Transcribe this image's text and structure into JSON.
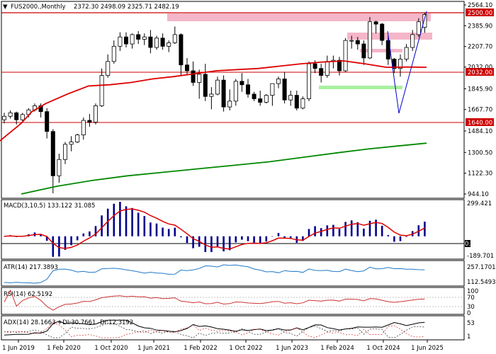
{
  "header": {
    "symbol": "FUS2000.,Monthly",
    "ohlc": "2372.30 2498.09 2325.71 2482.19"
  },
  "chart_data": {
    "type": "candlestick",
    "x_labels": [
      "1 Jun 2019",
      "1 Feb 2020",
      "1 Oct 2020",
      "1 Jun 2021",
      "1 Feb 2022",
      "1 Oct 2022",
      "1 Jun 2023",
      "1 Feb 2024",
      "1 Oct 2024",
      "1 Jun 2025"
    ],
    "price_ticks": [
      "2564.10",
      "2385.90",
      "2207.70",
      "2032.00",
      "1845.90",
      "1667.70",
      "1484.10",
      "1300.50",
      "1122.30",
      "944.10"
    ],
    "price_range": [
      944.1,
      2564.1
    ],
    "level_labels": [
      "2500.00",
      "2032.00",
      "1640.00"
    ],
    "candles": [
      [
        1580,
        1640,
        1550,
        1610
      ],
      [
        1610,
        1660,
        1590,
        1640
      ],
      [
        1640,
        1650,
        1540,
        1580
      ],
      [
        1580,
        1640,
        1570,
        1625
      ],
      [
        1625,
        1680,
        1600,
        1665
      ],
      [
        1665,
        1720,
        1650,
        1700
      ],
      [
        1700,
        1720,
        1600,
        1650
      ],
      [
        1650,
        1680,
        1420,
        1480
      ],
      [
        1480,
        1500,
        950,
        1100
      ],
      [
        1100,
        1290,
        1040,
        1240
      ],
      [
        1240,
        1390,
        1200,
        1370
      ],
      [
        1370,
        1440,
        1310,
        1390
      ],
      [
        1390,
        1460,
        1380,
        1450
      ],
      [
        1450,
        1600,
        1410,
        1575
      ],
      [
        1575,
        1630,
        1520,
        1560
      ],
      [
        1560,
        1720,
        1540,
        1700
      ],
      [
        1700,
        2020,
        1690,
        1960
      ],
      [
        1960,
        2140,
        1940,
        2080
      ],
      [
        2080,
        2260,
        2060,
        2210
      ],
      [
        2210,
        2330,
        2170,
        2290
      ],
      [
        2290,
        2330,
        2200,
        2230
      ],
      [
        2230,
        2320,
        2190,
        2310
      ],
      [
        2310,
        2340,
        2230,
        2270
      ],
      [
        2270,
        2320,
        2220,
        2290
      ],
      [
        2290,
        2350,
        2150,
        2200
      ],
      [
        2200,
        2300,
        2180,
        2280
      ],
      [
        2280,
        2320,
        2180,
        2210
      ],
      [
        2210,
        2260,
        2160,
        2240
      ],
      [
        2240,
        2380,
        2230,
        2310
      ],
      [
        2310,
        2320,
        1960,
        2050
      ],
      [
        2050,
        2110,
        1960,
        2000
      ],
      [
        2000,
        2080,
        1870,
        1900
      ],
      [
        1900,
        2010,
        1760,
        1970
      ],
      [
        1970,
        2060,
        1740,
        1780
      ],
      [
        1780,
        1860,
        1670,
        1800
      ],
      [
        1800,
        1950,
        1790,
        1920
      ],
      [
        1920,
        1960,
        1650,
        1690
      ],
      [
        1690,
        1840,
        1660,
        1740
      ],
      [
        1740,
        1930,
        1700,
        1910
      ],
      [
        1910,
        1980,
        1820,
        1880
      ],
      [
        1880,
        1930,
        1770,
        1800
      ],
      [
        1800,
        1820,
        1740,
        1760
      ],
      [
        1760,
        1830,
        1700,
        1730
      ],
      [
        1730,
        1800,
        1720,
        1790
      ],
      [
        1790,
        1880,
        1700,
        1890
      ],
      [
        1890,
        1950,
        1850,
        1930
      ],
      [
        1930,
        1990,
        1720,
        1750
      ],
      [
        1750,
        1830,
        1700,
        1790
      ],
      [
        1790,
        1830,
        1660,
        1680
      ],
      [
        1680,
        1780,
        1670,
        1760
      ],
      [
        1760,
        2080,
        1740,
        2060
      ],
      [
        2060,
        2090,
        1980,
        2020
      ],
      [
        2020,
        2060,
        1900,
        1960
      ],
      [
        1960,
        2130,
        1940,
        2080
      ],
      [
        2080,
        2130,
        2020,
        2090
      ],
      [
        2090,
        2120,
        1960,
        2000
      ],
      [
        2000,
        2280,
        1990,
        2260
      ],
      [
        2260,
        2300,
        2190,
        2260
      ],
      [
        2260,
        2290,
        2180,
        2230
      ],
      [
        2230,
        2260,
        2050,
        2110
      ],
      [
        2110,
        2460,
        2100,
        2420
      ],
      [
        2420,
        2430,
        2320,
        2400
      ],
      [
        2400,
        2410,
        2220,
        2260
      ],
      [
        2260,
        2300,
        2050,
        2100
      ],
      [
        2100,
        2110,
        1980,
        2020
      ],
      [
        2020,
        2140,
        1950,
        2100
      ],
      [
        2100,
        2230,
        2080,
        2200
      ],
      [
        2200,
        2350,
        2170,
        2310
      ],
      [
        2310,
        2450,
        2290,
        2420
      ],
      [
        2372.3,
        2498.09,
        2325.71,
        2482.19
      ]
    ],
    "ma_red": [
      [
        0,
        1400
      ],
      [
        10,
        1450
      ],
      [
        20,
        1500
      ],
      [
        30,
        1550
      ],
      [
        45,
        1650
      ],
      [
        65,
        1720
      ],
      [
        95,
        1800
      ],
      [
        125,
        1870
      ],
      [
        155,
        1880
      ],
      [
        185,
        1900
      ],
      [
        215,
        1930
      ],
      [
        245,
        1950
      ],
      [
        275,
        1975
      ],
      [
        305,
        2000
      ],
      [
        335,
        2010
      ],
      [
        365,
        2020
      ],
      [
        395,
        2040
      ],
      [
        425,
        2060
      ],
      [
        455,
        2075
      ],
      [
        485,
        2085
      ],
      [
        515,
        2060
      ],
      [
        545,
        2030
      ],
      [
        575,
        2032
      ],
      [
        602,
        2030
      ]
    ],
    "ma_green": [
      [
        30,
        944
      ],
      [
        80,
        1010
      ],
      [
        130,
        1060
      ],
      [
        180,
        1100
      ],
      [
        230,
        1130
      ],
      [
        280,
        1160
      ],
      [
        330,
        1190
      ],
      [
        380,
        1220
      ],
      [
        430,
        1260
      ],
      [
        480,
        1300
      ],
      [
        520,
        1330
      ],
      [
        560,
        1355
      ],
      [
        602,
        1380
      ]
    ],
    "macd": {
      "title": "MACD(3,10,5) 133.122 31.085",
      "ticks": [
        "299.421",
        "0.00",
        "-189.701"
      ],
      "range": [
        -189.701,
        299.421
      ]
    },
    "atr": {
      "title": "ATR(14) 217.3893",
      "ticks": [
        "257.1701",
        "112.5493"
      ]
    },
    "rsi": {
      "title": "RSI(14) 62.5192",
      "ticks": [
        "100",
        "70",
        "30",
        "0"
      ]
    },
    "adx": {
      "title": "ADX(14) 28.1663 +DI:30.7661 -DI:12.3192",
      "ticks": [
        "53",
        "1"
      ]
    },
    "colors": {
      "bull": "#ffffff",
      "bear": "#000000",
      "ma_red": "#dd0000",
      "ma_green": "#008800",
      "level": "#cc0000",
      "zone_pink": "#f4b6c8",
      "zone_green": "#a8f0a0",
      "trend": "#0000cc",
      "macd_hist": "#00008b",
      "atr": "#1f78c8",
      "rsi": "#cc3333"
    }
  }
}
